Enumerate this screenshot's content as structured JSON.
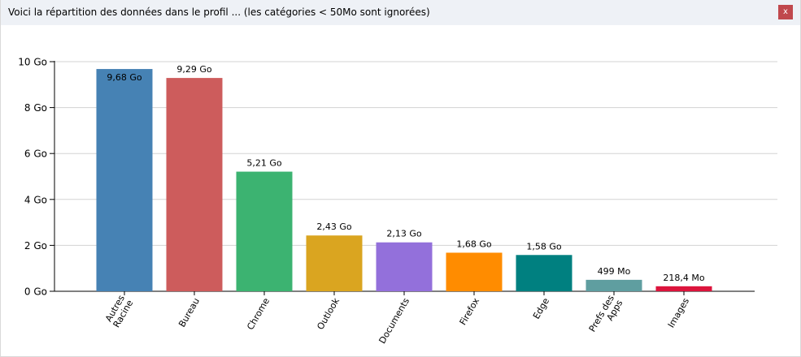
{
  "window": {
    "title": "Voici la répartition des données dans le profil ... (les catégories < 50Mo sont ignorées)",
    "close_label": "x",
    "close_color": "#c0484d"
  },
  "chart_data": {
    "type": "bar",
    "title": "",
    "xlabel": "",
    "ylabel": "",
    "ylim": [
      0,
      10
    ],
    "yunit": "Go",
    "yticks": [
      {
        "value": 0,
        "label": "0 Go"
      },
      {
        "value": 2,
        "label": "2 Go"
      },
      {
        "value": 4,
        "label": "4 Go"
      },
      {
        "value": 6,
        "label": "6 Go"
      },
      {
        "value": 8,
        "label": "8 Go"
      },
      {
        "value": 10,
        "label": "10 Go"
      }
    ],
    "grid": true,
    "categories": [
      [
        "Autres",
        "Racine"
      ],
      [
        "Bureau"
      ],
      [
        "Chrome"
      ],
      [
        "Outlook"
      ],
      [
        "Documents"
      ],
      [
        "Firefox"
      ],
      [
        "Edge"
      ],
      [
        "Prefs des",
        "Apps"
      ],
      [
        "Images"
      ]
    ],
    "values": [
      9.68,
      9.29,
      5.21,
      2.43,
      2.13,
      1.68,
      1.58,
      0.499,
      0.2184
    ],
    "value_labels": [
      "9,68 Go",
      "9,29 Go",
      "5,21 Go",
      "2,43 Go",
      "2,13 Go",
      "1,68 Go",
      "1,58 Go",
      "499 Mo",
      "218,4 Mo"
    ],
    "colors": [
      "#4682b4",
      "#cd5c5c",
      "#3cb371",
      "#daa520",
      "#9370db",
      "#ff8c00",
      "#008080",
      "#5f9ea0",
      "#dc143c"
    ]
  }
}
